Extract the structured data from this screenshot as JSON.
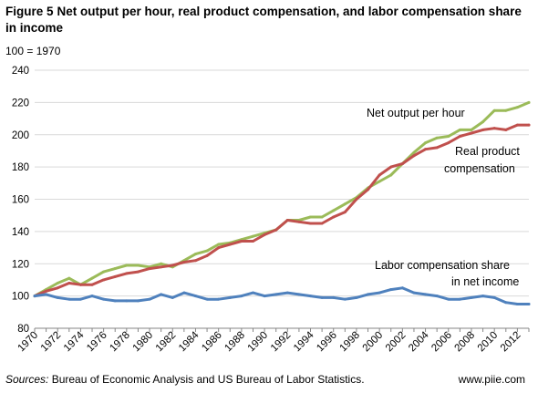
{
  "header": {
    "figure_label": "Figure 5",
    "title": "Net output per hour, real product compensation, and labor compensation share in income",
    "unit_note": "100 = 1970"
  },
  "footer": {
    "sources_label": "Sources:",
    "sources_text": "Bureau of Economic Analysis and US Bureau of Labor Statistics.",
    "website": "www.piie.com"
  },
  "chart_data": {
    "type": "line",
    "title": "Net output per hour, real product compensation, and labor compensation share in income",
    "xlabel": "",
    "ylabel": "",
    "ylim": [
      80,
      240
    ],
    "yticks": [
      80,
      100,
      120,
      140,
      160,
      180,
      200,
      220,
      240
    ],
    "xticks": [
      "1970",
      "1972",
      "1974",
      "1976",
      "1978",
      "1980",
      "1982",
      "1984",
      "1986",
      "1988",
      "1990",
      "1992",
      "1994",
      "1996",
      "1998",
      "2000",
      "2002",
      "2004",
      "2006",
      "2008",
      "2010",
      "2012"
    ],
    "x": [
      1970,
      1971,
      1972,
      1973,
      1974,
      1975,
      1976,
      1977,
      1978,
      1979,
      1980,
      1981,
      1982,
      1983,
      1984,
      1985,
      1986,
      1987,
      1988,
      1989,
      1990,
      1991,
      1992,
      1993,
      1994,
      1995,
      1996,
      1997,
      1998,
      1999,
      2000,
      2001,
      2002,
      2003,
      2004,
      2005,
      2006,
      2007,
      2008,
      2009,
      2010,
      2011,
      2012,
      2013
    ],
    "grid": true,
    "series": [
      {
        "name": "Net output per hour",
        "color": "#9bbb59",
        "values": [
          100,
          104,
          108,
          111,
          107,
          111,
          115,
          117,
          119,
          119,
          118,
          120,
          118,
          122,
          126,
          128,
          132,
          133,
          135,
          137,
          139,
          141,
          147,
          147,
          149,
          149,
          153,
          157,
          161,
          167,
          171,
          175,
          182,
          189,
          195,
          198,
          199,
          203,
          203,
          208,
          215,
          215,
          217,
          220
        ]
      },
      {
        "name": "Real product compensation",
        "color": "#c0504d",
        "values": [
          100,
          103,
          105,
          108,
          107,
          107,
          110,
          112,
          114,
          115,
          117,
          118,
          119,
          121,
          122,
          125,
          130,
          132,
          134,
          134,
          138,
          141,
          147,
          146,
          145,
          145,
          149,
          152,
          160,
          166,
          175,
          180,
          182,
          187,
          191,
          192,
          195,
          199,
          201,
          203,
          204,
          203,
          206,
          206
        ]
      },
      {
        "name": "Labor compensation share in net income",
        "color": "#4f81bd",
        "values": [
          100,
          101,
          99,
          98,
          98,
          100,
          98,
          97,
          97,
          97,
          98,
          101,
          99,
          102,
          100,
          98,
          98,
          99,
          100,
          102,
          100,
          101,
          102,
          101,
          100,
          99,
          99,
          98,
          99,
          101,
          102,
          104,
          105,
          102,
          101,
          100,
          98,
          98,
          99,
          100,
          99,
          96,
          95,
          95
        ]
      }
    ],
    "annotations": [
      {
        "text": "Net output per hour"
      },
      {
        "text_lines": [
          "Real product",
          "compensation"
        ]
      },
      {
        "text_lines": [
          "Labor compensation share",
          "in net income"
        ]
      }
    ]
  }
}
